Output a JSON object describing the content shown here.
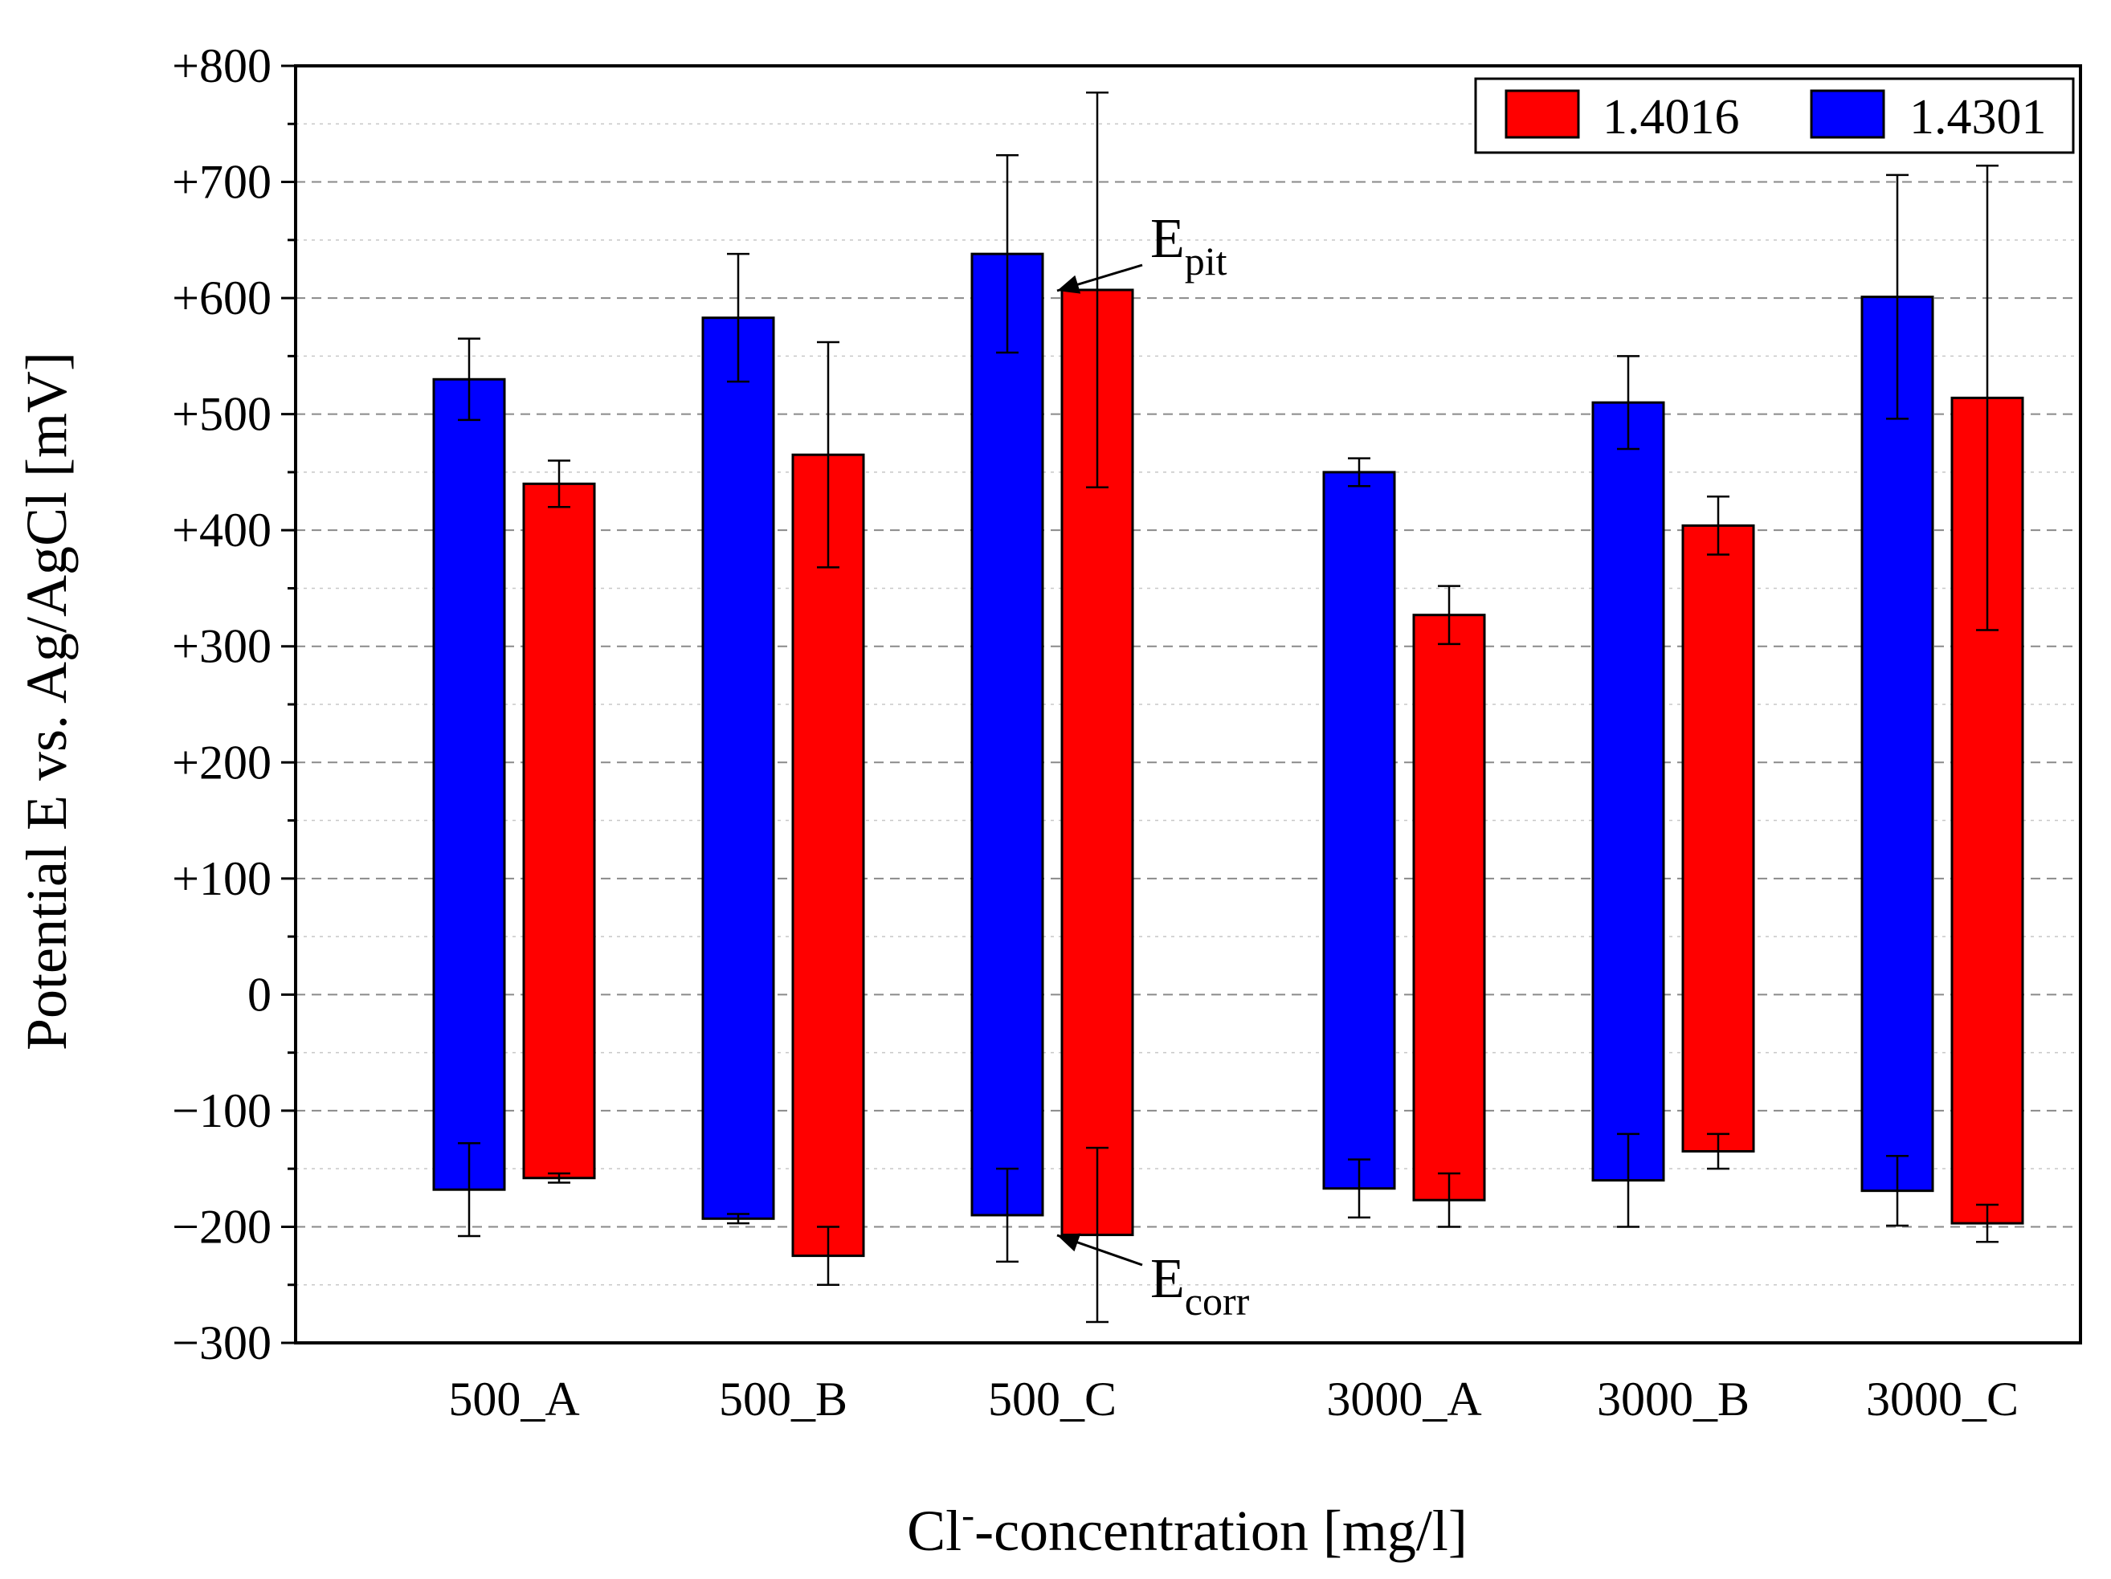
{
  "chart_data": {
    "type": "bar",
    "title": "",
    "xlabel_main": "Cl",
    "xlabel_sup": "-",
    "xlabel_rest": "-concentration [mg/l]",
    "ylabel": "Potential E vs. Ag/AgCl [mV]",
    "ylim": [
      -300,
      800
    ],
    "yticks": [
      -300,
      -200,
      -100,
      0,
      100,
      200,
      300,
      400,
      500,
      600,
      700,
      800
    ],
    "ytick_labels": [
      "−300",
      "−200",
      "−100",
      "0",
      "+100",
      "+200",
      "+300",
      "+400",
      "+500",
      "+600",
      "+700",
      "+800"
    ],
    "grid": "horizontal-dashed",
    "legend_position": "top-right",
    "categories": [
      "500_A",
      "500_B",
      "500_C",
      "3000_A",
      "3000_B",
      "3000_C"
    ],
    "series": [
      {
        "name": "1.4301",
        "color": "#0000ff",
        "e_pit": [
          530,
          583,
          638,
          450,
          510,
          601
        ],
        "e_pit_err": [
          35,
          55,
          85,
          12,
          40,
          105
        ],
        "e_corr": [
          -168,
          -193,
          -190,
          -167,
          -160,
          -169
        ],
        "e_corr_err": [
          40,
          4,
          40,
          25,
          40,
          30
        ]
      },
      {
        "name": "1.4016",
        "color": "#ff0000",
        "e_pit": [
          440,
          465,
          607,
          327,
          404,
          514
        ],
        "e_pit_err": [
          20,
          97,
          170,
          25,
          25,
          200
        ],
        "e_corr": [
          -158,
          -225,
          -207,
          -177,
          -135,
          -197
        ],
        "e_corr_err": [
          4,
          25,
          75,
          23,
          15,
          16
        ]
      }
    ],
    "annotations": [
      {
        "main": "E",
        "sub": "pit",
        "target": "500_C 1.4016 E_pit"
      },
      {
        "main": "E",
        "sub": "corr",
        "target": "500_C 1.4016 E_corr"
      }
    ]
  }
}
